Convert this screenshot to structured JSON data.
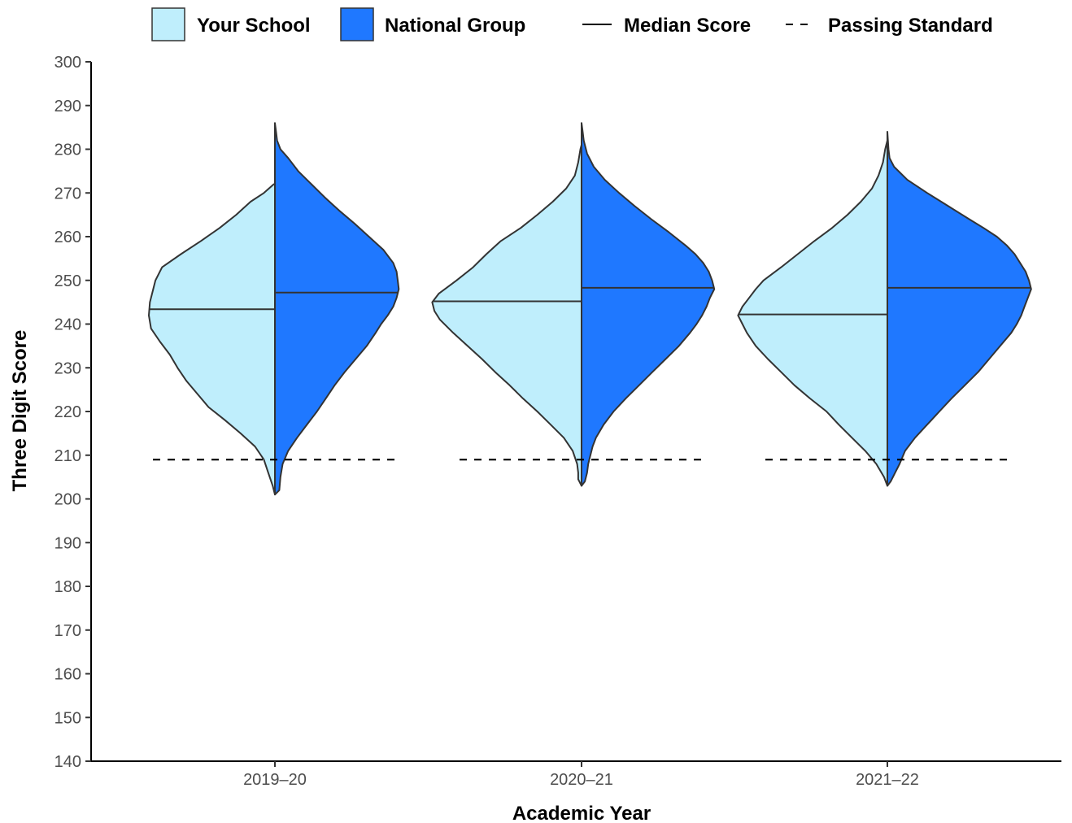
{
  "chart_data": {
    "type": "violin",
    "xlabel": "Academic Year",
    "ylabel": "Three Digit Score",
    "categories": [
      "2019–20",
      "2020–21",
      "2021–22"
    ],
    "ylim": [
      140,
      300
    ],
    "yticks": [
      140,
      150,
      160,
      170,
      180,
      190,
      200,
      210,
      220,
      230,
      240,
      250,
      260,
      270,
      280,
      290,
      300
    ],
    "passing_standard": 209,
    "grid": false,
    "legend": {
      "position": "top",
      "items": [
        {
          "label": "Your School",
          "kind": "fill",
          "color": "#BFEEFC"
        },
        {
          "label": "National Group",
          "kind": "fill",
          "color": "#1F78FF"
        },
        {
          "label": "Median Score",
          "kind": "solid-line"
        },
        {
          "label": "Passing Standard",
          "kind": "dashed-line"
        }
      ]
    },
    "series": [
      {
        "name": "Your School",
        "color": "#BFEEFC",
        "side": "left",
        "medians": [
          243.4,
          245.2,
          242.2
        ],
        "profiles": [
          [
            [
              201,
              0
            ],
            [
              203,
              0.02
            ],
            [
              206,
              0.06
            ],
            [
              209,
              0.1
            ],
            [
              212,
              0.18
            ],
            [
              215,
              0.31
            ],
            [
              218,
              0.45
            ],
            [
              221,
              0.6
            ],
            [
              224,
              0.7
            ],
            [
              227,
              0.8
            ],
            [
              230,
              0.88
            ],
            [
              233,
              0.95
            ],
            [
              236,
              1.04
            ],
            [
              239,
              1.12
            ],
            [
              242,
              1.14
            ],
            [
              245,
              1.13
            ],
            [
              248,
              1.1
            ],
            [
              250,
              1.08
            ],
            [
              253,
              1.02
            ],
            [
              256,
              0.85
            ],
            [
              259,
              0.67
            ],
            [
              262,
              0.5
            ],
            [
              265,
              0.35
            ],
            [
              268,
              0.22
            ],
            [
              270,
              0.1
            ],
            [
              272,
              0.01
            ]
          ],
          [
            [
              203,
              0
            ],
            [
              204.5,
              0.03
            ],
            [
              206,
              0.03
            ],
            [
              208,
              0.04
            ],
            [
              211,
              0.08
            ],
            [
              214,
              0.16
            ],
            [
              217,
              0.28
            ],
            [
              220,
              0.4
            ],
            [
              223,
              0.53
            ],
            [
              226,
              0.65
            ],
            [
              229,
              0.78
            ],
            [
              232,
              0.9
            ],
            [
              235,
              1.03
            ],
            [
              238,
              1.16
            ],
            [
              241,
              1.28
            ],
            [
              243,
              1.33
            ],
            [
              245,
              1.35
            ],
            [
              247,
              1.29
            ],
            [
              250,
              1.13
            ],
            [
              253,
              0.98
            ],
            [
              256,
              0.86
            ],
            [
              259,
              0.73
            ],
            [
              262,
              0.55
            ],
            [
              265,
              0.4
            ],
            [
              268,
              0.26
            ],
            [
              271,
              0.14
            ],
            [
              274,
              0.06
            ],
            [
              277,
              0.03
            ],
            [
              280,
              0.01
            ],
            [
              281,
              0
            ]
          ],
          [
            [
              203,
              0
            ],
            [
              205,
              0.03
            ],
            [
              208,
              0.1
            ],
            [
              211,
              0.2
            ],
            [
              214,
              0.32
            ],
            [
              217,
              0.44
            ],
            [
              220,
              0.55
            ],
            [
              223,
              0.7
            ],
            [
              226,
              0.84
            ],
            [
              229,
              0.96
            ],
            [
              232,
              1.08
            ],
            [
              235,
              1.19
            ],
            [
              238,
              1.27
            ],
            [
              240,
              1.31
            ],
            [
              242,
              1.35
            ],
            [
              244,
              1.31
            ],
            [
              246,
              1.25
            ],
            [
              248,
              1.19
            ],
            [
              250,
              1.12
            ],
            [
              253,
              0.96
            ],
            [
              256,
              0.81
            ],
            [
              259,
              0.66
            ],
            [
              262,
              0.5
            ],
            [
              265,
              0.36
            ],
            [
              268,
              0.24
            ],
            [
              271,
              0.14
            ],
            [
              274,
              0.08
            ],
            [
              277,
              0.04
            ],
            [
              280,
              0.02
            ],
            [
              282,
              0
            ]
          ]
        ]
      },
      {
        "name": "National Group",
        "color": "#1F78FF",
        "side": "right",
        "medians": [
          247.2,
          248.3,
          248.3
        ],
        "profiles": [
          [
            [
              201,
              0
            ],
            [
              202,
              0.04
            ],
            [
              205,
              0.05
            ],
            [
              208,
              0.07
            ],
            [
              211,
              0.12
            ],
            [
              214,
              0.2
            ],
            [
              217,
              0.29
            ],
            [
              220,
              0.38
            ],
            [
              223,
              0.46
            ],
            [
              226,
              0.54
            ],
            [
              229,
              0.63
            ],
            [
              232,
              0.73
            ],
            [
              235,
              0.83
            ],
            [
              238,
              0.91
            ],
            [
              240,
              0.96
            ],
            [
              242,
              1.02
            ],
            [
              244,
              1.07
            ],
            [
              246,
              1.1
            ],
            [
              248,
              1.12
            ],
            [
              250,
              1.11
            ],
            [
              252,
              1.1
            ],
            [
              254,
              1.07
            ],
            [
              257,
              0.98
            ],
            [
              260,
              0.85
            ],
            [
              263,
              0.72
            ],
            [
              266,
              0.58
            ],
            [
              269,
              0.45
            ],
            [
              272,
              0.33
            ],
            [
              275,
              0.21
            ],
            [
              278,
              0.12
            ],
            [
              280,
              0.05
            ],
            [
              282,
              0.02
            ],
            [
              284,
              0.01
            ],
            [
              286,
              0
            ]
          ],
          [
            [
              203,
              0
            ],
            [
              204,
              0.03
            ],
            [
              206,
              0.05
            ],
            [
              208,
              0.06
            ],
            [
              210,
              0.08
            ],
            [
              212,
              0.1
            ],
            [
              214,
              0.13
            ],
            [
              217,
              0.2
            ],
            [
              220,
              0.29
            ],
            [
              223,
              0.4
            ],
            [
              226,
              0.52
            ],
            [
              229,
              0.64
            ],
            [
              232,
              0.76
            ],
            [
              235,
              0.88
            ],
            [
              238,
              0.98
            ],
            [
              240,
              1.04
            ],
            [
              242,
              1.09
            ],
            [
              244,
              1.13
            ],
            [
              246,
              1.16
            ],
            [
              248,
              1.2
            ],
            [
              250,
              1.18
            ],
            [
              252,
              1.15
            ],
            [
              254,
              1.1
            ],
            [
              256,
              1.03
            ],
            [
              258,
              0.94
            ],
            [
              261,
              0.79
            ],
            [
              264,
              0.63
            ],
            [
              267,
              0.48
            ],
            [
              270,
              0.34
            ],
            [
              273,
              0.21
            ],
            [
              276,
              0.11
            ],
            [
              279,
              0.05
            ],
            [
              282,
              0.02
            ],
            [
              284,
              0.01
            ],
            [
              286,
              0
            ]
          ],
          [
            [
              203,
              0
            ],
            [
              204,
              0.03
            ],
            [
              206,
              0.07
            ],
            [
              208,
              0.11
            ],
            [
              211,
              0.16
            ],
            [
              214,
              0.25
            ],
            [
              217,
              0.36
            ],
            [
              220,
              0.47
            ],
            [
              223,
              0.58
            ],
            [
              226,
              0.7
            ],
            [
              229,
              0.82
            ],
            [
              232,
              0.92
            ],
            [
              235,
              1.02
            ],
            [
              238,
              1.12
            ],
            [
              240,
              1.17
            ],
            [
              242,
              1.21
            ],
            [
              244,
              1.24
            ],
            [
              246,
              1.27
            ],
            [
              248,
              1.3
            ],
            [
              250,
              1.28
            ],
            [
              252,
              1.25
            ],
            [
              254,
              1.2
            ],
            [
              256,
              1.15
            ],
            [
              258,
              1.08
            ],
            [
              260,
              0.99
            ],
            [
              262,
              0.87
            ],
            [
              264,
              0.74
            ],
            [
              267,
              0.55
            ],
            [
              270,
              0.36
            ],
            [
              273,
              0.18
            ],
            [
              276,
              0.06
            ],
            [
              278,
              0.02
            ],
            [
              280,
              0.01
            ],
            [
              282,
              0.005
            ],
            [
              284,
              0
            ]
          ]
        ]
      }
    ]
  }
}
